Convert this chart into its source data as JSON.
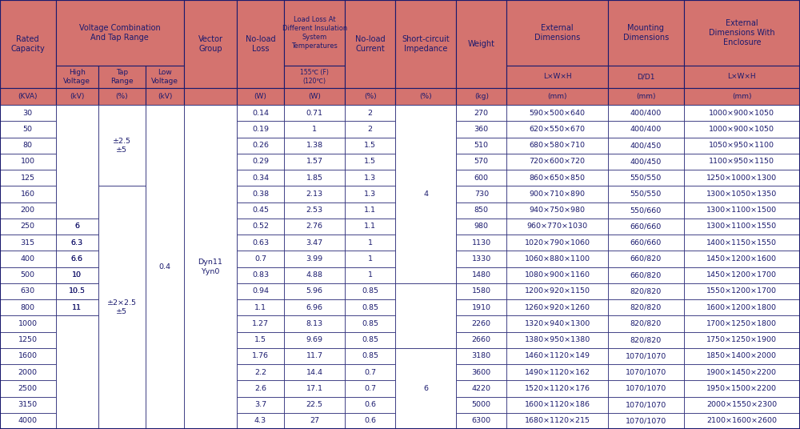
{
  "header_bg": "#d4736f",
  "header_text_color": "#1a1a6e",
  "data_bg": "#ffffff",
  "data_text_color": "#1a1a6e",
  "border_color": "#1a1a6e",
  "col_widths_raw": [
    55,
    42,
    47,
    38,
    52,
    47,
    60,
    50,
    60,
    50,
    100,
    75,
    115
  ],
  "hr1": 82,
  "hr2": 28,
  "hr3": 21,
  "fs_header": 7.0,
  "fs_data": 6.8,
  "rows": [
    [
      "30",
      "",
      "",
      "",
      "",
      "0.14",
      "0.71",
      "2",
      "",
      "270",
      "590×500×640",
      "400/400",
      "1000×900×1050"
    ],
    [
      "50",
      "",
      "",
      "",
      "",
      "0.19",
      "1",
      "2",
      "",
      "360",
      "620×550×670",
      "400/400",
      "1000×900×1050"
    ],
    [
      "80",
      "",
      "",
      "",
      "",
      "0.26",
      "1.38",
      "1.5",
      "",
      "510",
      "680×580×710",
      "400/450",
      "1050×950×1100"
    ],
    [
      "100",
      "",
      "",
      "",
      "",
      "0.29",
      "1.57",
      "1.5",
      "",
      "570",
      "720×600×720",
      "400/450",
      "1100×950×1150"
    ],
    [
      "125",
      "",
      "",
      "",
      "",
      "0.34",
      "1.85",
      "1.3",
      "",
      "600",
      "860×650×850",
      "550/550",
      "1250×1000×1300"
    ],
    [
      "160",
      "",
      "",
      "",
      "",
      "0.38",
      "2.13",
      "1.3",
      "",
      "730",
      "900×710×890",
      "550/550",
      "1300×1050×1350"
    ],
    [
      "200",
      "",
      "",
      "",
      "",
      "0.45",
      "2.53",
      "1.1",
      "",
      "850",
      "940×750×980",
      "550/660",
      "1300×1100×1500"
    ],
    [
      "250",
      "6",
      "",
      "",
      "",
      "0.52",
      "2.76",
      "1.1",
      "",
      "980",
      "960×770×1030",
      "660/660",
      "1300×1100×1550"
    ],
    [
      "315",
      "6.3",
      "",
      "",
      "",
      "0.63",
      "3.47",
      "1",
      "",
      "1130",
      "1020×790×1060",
      "660/660",
      "1400×1150×1550"
    ],
    [
      "400",
      "6.6",
      "",
      "",
      "",
      "0.7",
      "3.99",
      "1",
      "",
      "1330",
      "1060×880×1100",
      "660/820",
      "1450×1200×1600"
    ],
    [
      "500",
      "10",
      "",
      "",
      "",
      "0.83",
      "4.88",
      "1",
      "",
      "1480",
      "1080×900×1160",
      "660/820",
      "1450×1200×1700"
    ],
    [
      "630",
      "10.5",
      "",
      "",
      "",
      "0.94",
      "5.96",
      "0.85",
      "",
      "1580",
      "1200×920×1150",
      "820/820",
      "1550×1200×1700"
    ],
    [
      "800",
      "11",
      "",
      "",
      "",
      "1.1",
      "6.96",
      "0.85",
      "",
      "1910",
      "1260×920×1260",
      "820/820",
      "1600×1200×1800"
    ],
    [
      "1000",
      "",
      "",
      "",
      "",
      "1.27",
      "8.13",
      "0.85",
      "",
      "2260",
      "1320×940×1300",
      "820/820",
      "1700×1250×1800"
    ],
    [
      "1250",
      "",
      "",
      "",
      "",
      "1.5",
      "9.69",
      "0.85",
      "",
      "2660",
      "1380×950×1380",
      "820/820",
      "1750×1250×1900"
    ],
    [
      "1600",
      "",
      "",
      "",
      "",
      "1.76",
      "11.7",
      "0.85",
      "",
      "3180",
      "1460×1120×149",
      "1070/1070",
      "1850×1400×2000"
    ],
    [
      "2000",
      "",
      "",
      "",
      "",
      "2.2",
      "14.4",
      "0.7",
      "",
      "3600",
      "1490×1120×162",
      "1070/1070",
      "1900×1450×2200"
    ],
    [
      "2500",
      "",
      "",
      "",
      "",
      "2.6",
      "17.1",
      "0.7",
      "",
      "4220",
      "1520×1120×176",
      "1070/1070",
      "1950×1500×2200"
    ],
    [
      "3150",
      "",
      "",
      "",
      "",
      "3.7",
      "22.5",
      "0.6",
      "",
      "5000",
      "1600×1120×186",
      "1070/1070",
      "2000×1550×2300"
    ],
    [
      "4000",
      "",
      "",
      "",
      "",
      "4.3",
      "27",
      "0.6",
      "",
      "6300",
      "1680×1120×215",
      "1070/1070",
      "2100×1600×2600"
    ]
  ],
  "units": [
    "(KVA)",
    "(kV)",
    "(%)",
    "(kV)",
    "",
    "(W)",
    "(W)",
    "(%)",
    "(%)",
    "(kg)",
    "(mm)",
    "(mm)",
    "(mm)"
  ]
}
